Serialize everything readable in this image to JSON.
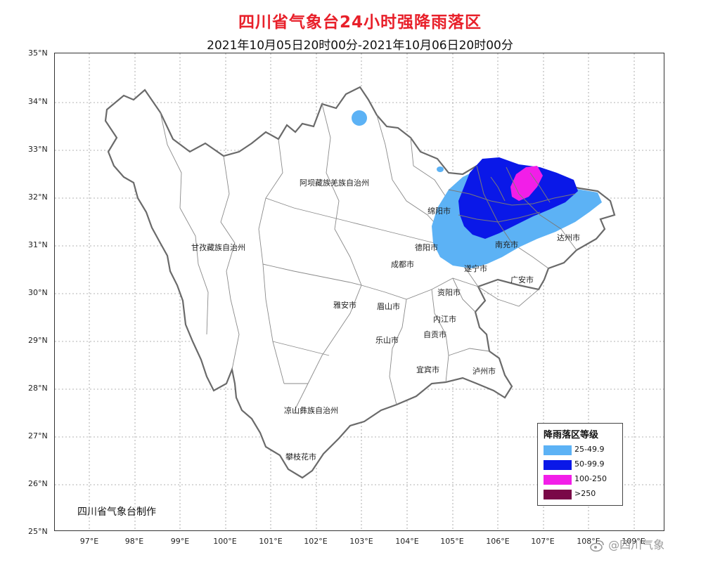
{
  "header": {
    "title": "四川省气象台24小时强降雨落区",
    "subtitle": "2021年10月05日20时00分-2021年10月06日20时00分"
  },
  "axes": {
    "lat_labels": [
      "35°N",
      "34°N",
      "33°N",
      "32°N",
      "31°N",
      "30°N",
      "29°N",
      "28°N",
      "27°N",
      "26°N",
      "25°N"
    ],
    "lon_labels": [
      "97°E",
      "98°E",
      "99°E",
      "100°E",
      "101°E",
      "102°E",
      "103°E",
      "104°E",
      "105°E",
      "106°E",
      "107°E",
      "108°E",
      "109°E"
    ]
  },
  "regions": [
    "阿坝藏族羌族自治州",
    "甘孜藏族自治州",
    "凉山彝族自治州",
    "绵阳市",
    "德阳市",
    "成都市",
    "雅安市",
    "眉山市",
    "乐山市",
    "资阳市",
    "遂宁市",
    "南充市",
    "广安市",
    "达州市",
    "内江市",
    "自贡市",
    "宜宾市",
    "泸州市",
    "攀枝花市"
  ],
  "legend": {
    "title": "降雨落区等级",
    "items": [
      {
        "label": "25-49.9",
        "color": "#5cb2f5"
      },
      {
        "label": "50-99.9",
        "color": "#0a18e8"
      },
      {
        "label": "100-250",
        "color": "#f21ee8"
      },
      {
        "label": ">250",
        "color": "#7a0848"
      }
    ]
  },
  "credit": "四川省气象台制作",
  "watermark": "@四川气象",
  "colors": {
    "title": "#e8202a",
    "boundary": "#666666"
  }
}
